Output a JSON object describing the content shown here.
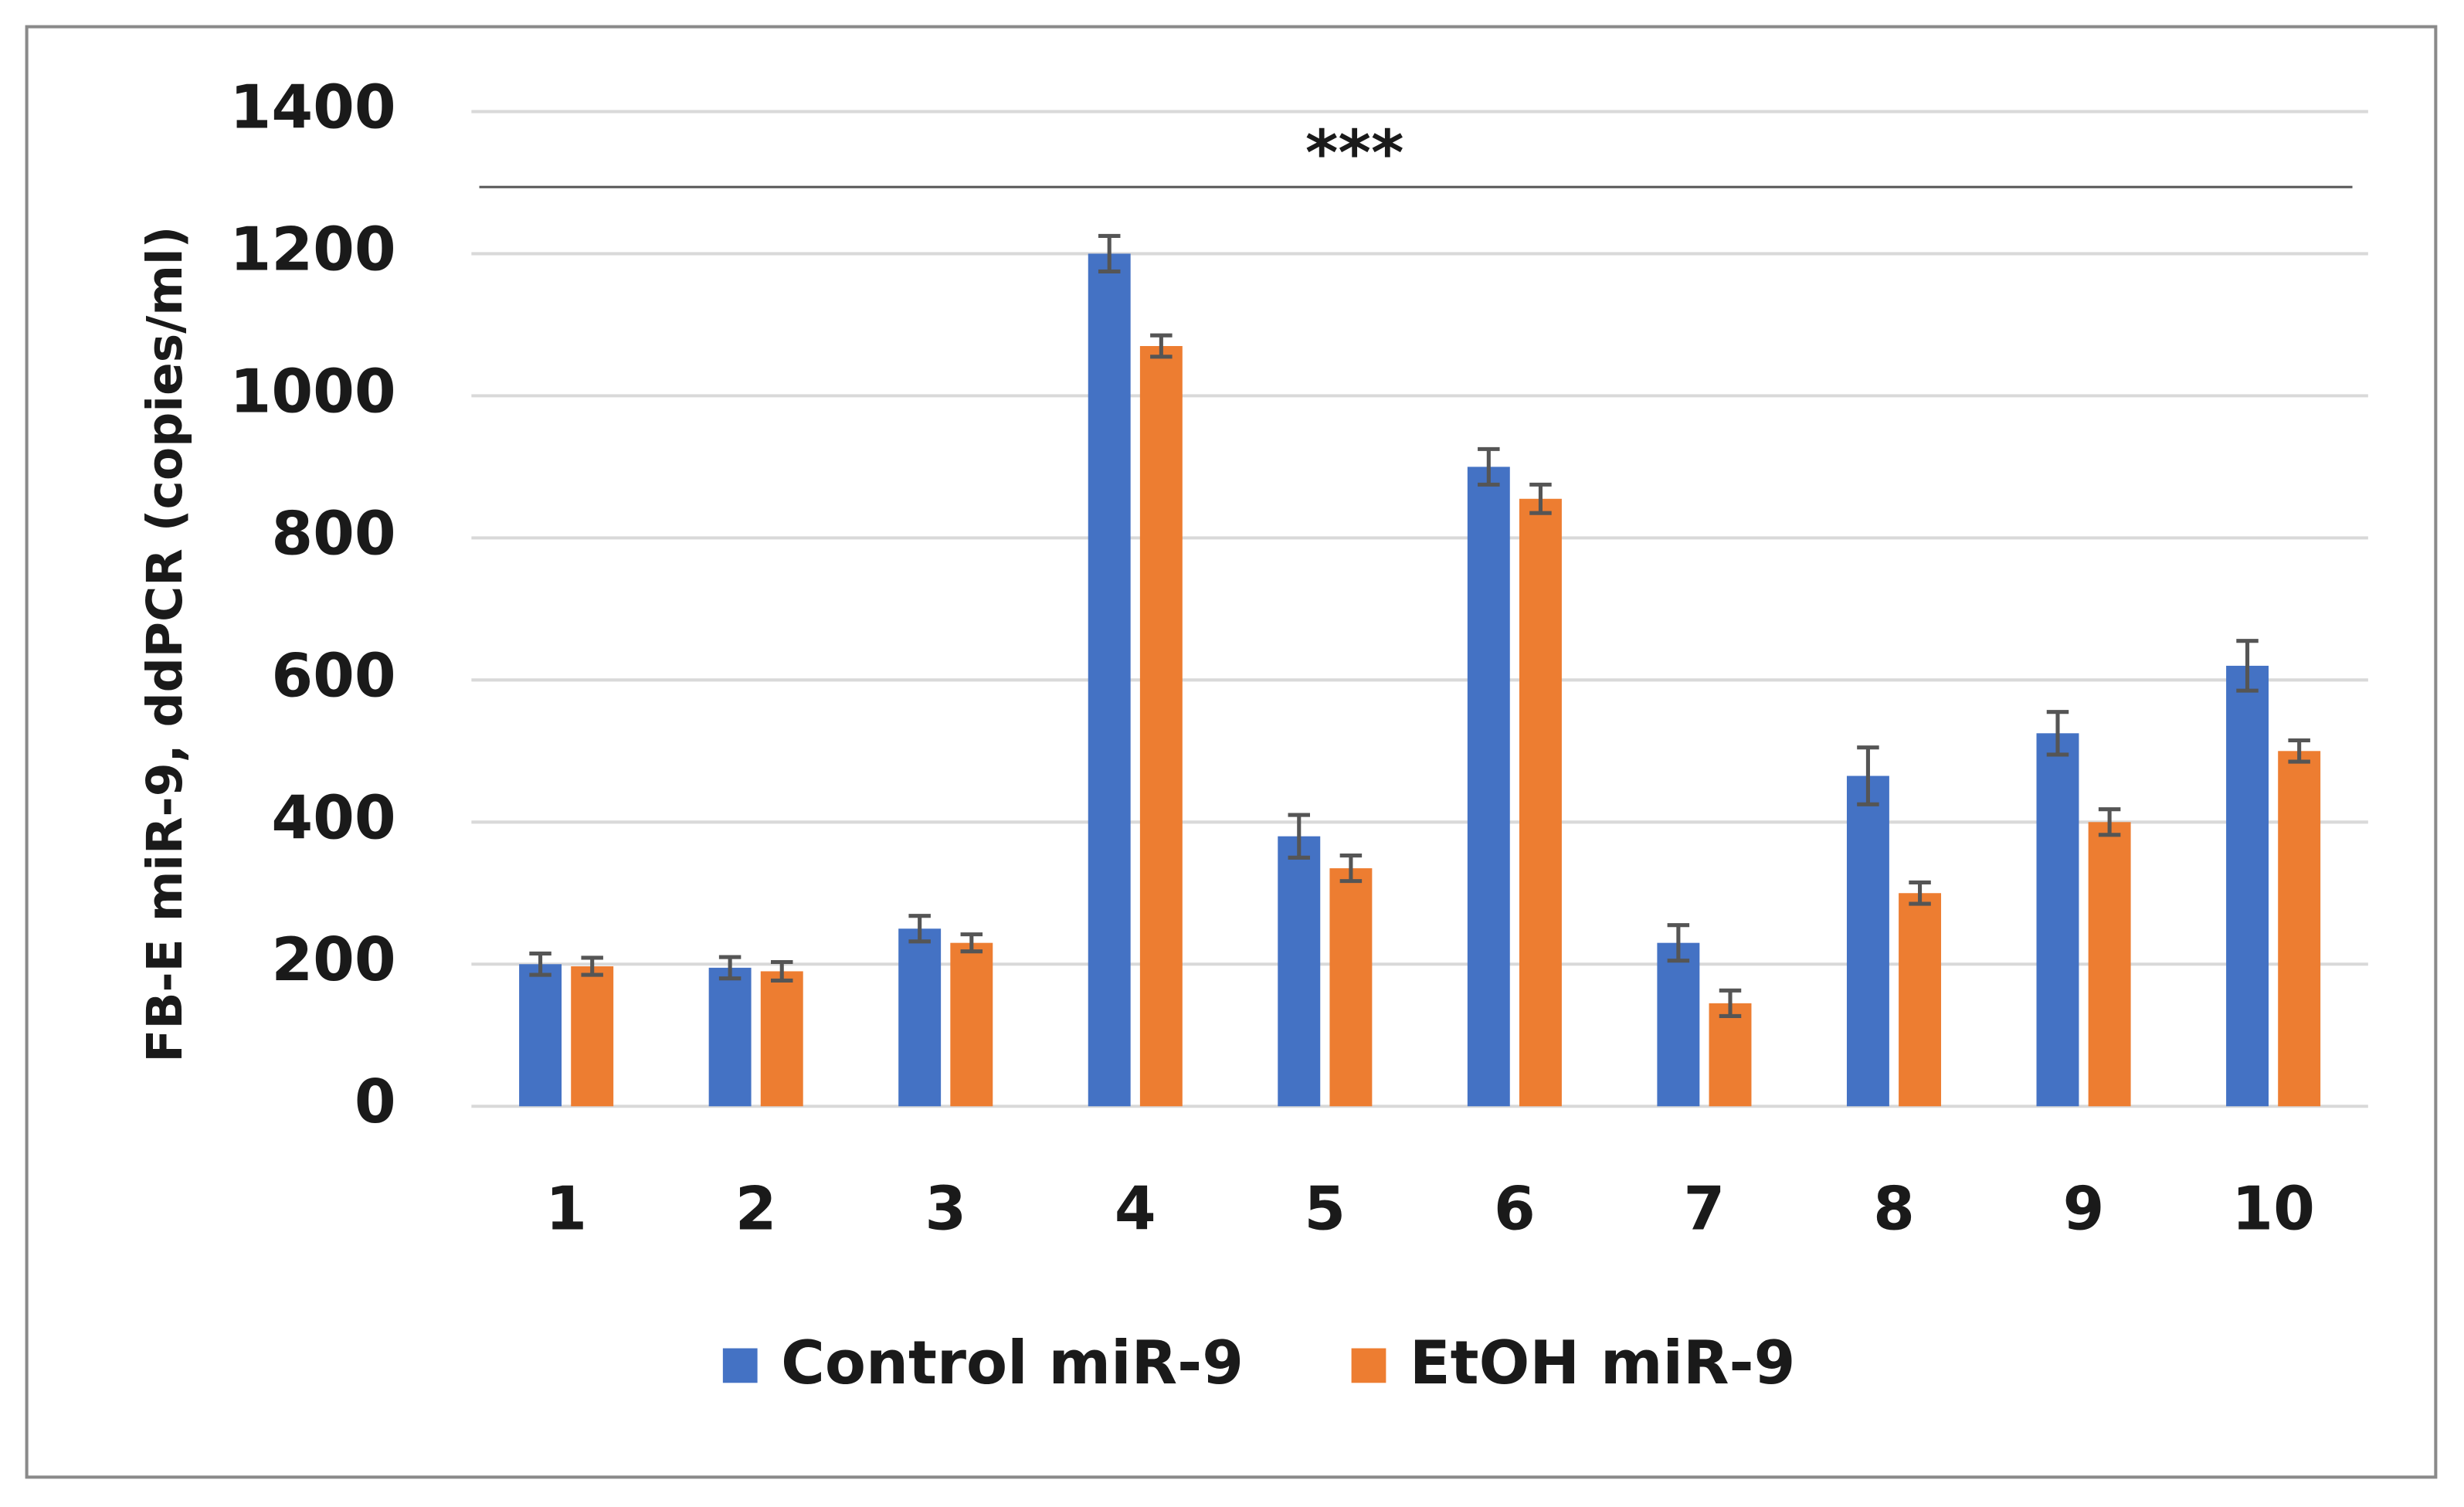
{
  "chart_data": {
    "type": "bar",
    "y_label": "FB-E miR-9, ddPCR (copies/ml)",
    "annotation": "***",
    "categories": [
      "1",
      "2",
      "3",
      "4",
      "5",
      "6",
      "7",
      "8",
      "9",
      "10"
    ],
    "series": [
      {
        "name": "Control miR-9",
        "color": "#4472c4",
        "values": [
          200,
          195,
          250,
          1200,
          380,
          900,
          230,
          465,
          525,
          620
        ],
        "errors": [
          15,
          15,
          18,
          25,
          30,
          25,
          25,
          40,
          30,
          35
        ]
      },
      {
        "name": "EtOH miR-9",
        "color": "#ed7d31",
        "values": [
          197,
          190,
          230,
          1070,
          335,
          855,
          145,
          300,
          400,
          500
        ],
        "errors": [
          12,
          13,
          12,
          15,
          18,
          20,
          18,
          15,
          18,
          15
        ]
      }
    ],
    "ylim": [
      0,
      1400
    ],
    "yticks": [
      0,
      200,
      400,
      600,
      800,
      1000,
      1200,
      1400
    ],
    "grid": true,
    "legend": "bottom"
  }
}
